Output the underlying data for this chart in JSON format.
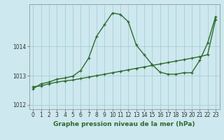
{
  "x": [
    0,
    1,
    2,
    3,
    4,
    5,
    6,
    7,
    8,
    9,
    10,
    11,
    12,
    13,
    14,
    15,
    16,
    17,
    18,
    19,
    20,
    21,
    22,
    23
  ],
  "pressure_line": [
    1012.55,
    1012.72,
    1012.78,
    1012.88,
    1012.92,
    1012.98,
    1013.18,
    1013.6,
    1014.35,
    1014.75,
    1015.15,
    1015.1,
    1014.85,
    1014.05,
    1013.72,
    1013.38,
    1013.12,
    1013.05,
    1013.05,
    1013.1,
    1013.1,
    1013.52,
    1014.12,
    1015.02
  ],
  "trend_line": [
    1012.62,
    1012.65,
    1012.72,
    1012.78,
    1012.82,
    1012.85,
    1012.9,
    1012.95,
    1013.0,
    1013.05,
    1013.1,
    1013.15,
    1013.2,
    1013.25,
    1013.3,
    1013.35,
    1013.4,
    1013.45,
    1013.5,
    1013.55,
    1013.6,
    1013.65,
    1013.72,
    1014.92
  ],
  "ylim": [
    1011.85,
    1015.45
  ],
  "yticks": [
    1012,
    1013,
    1014
  ],
  "xticks": [
    0,
    1,
    2,
    3,
    4,
    5,
    6,
    7,
    8,
    9,
    10,
    11,
    12,
    13,
    14,
    15,
    16,
    17,
    18,
    19,
    20,
    21,
    22,
    23
  ],
  "xlabel": "Graphe pression niveau de la mer (hPa)",
  "bg_color": "#cde8ee",
  "grid_color": "#a0c8d0",
  "line_color": "#2d6a2d",
  "marker": "+",
  "marker_size": 3,
  "line_width": 1.0,
  "tick_fontsize": 5.5,
  "xlabel_fontsize": 6.5
}
